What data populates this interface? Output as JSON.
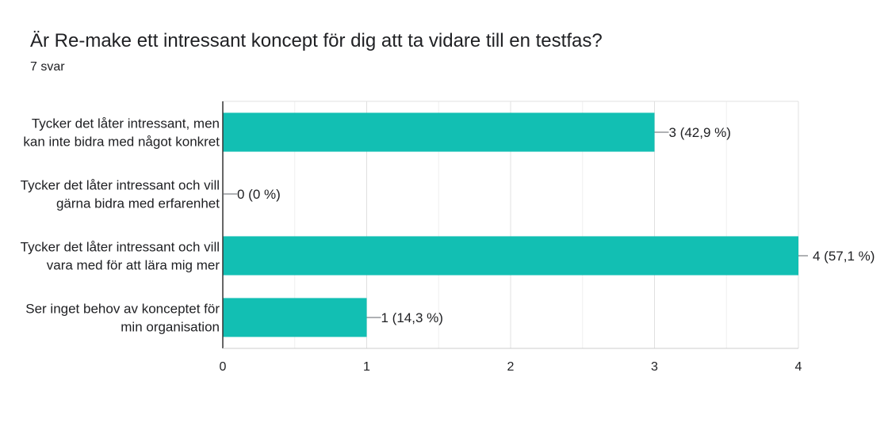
{
  "question": {
    "title": "Är Re-make ett intressant koncept för dig att ta vidare till en testfas?",
    "response_count": "7 svar"
  },
  "chart_data": {
    "type": "bar",
    "orientation": "horizontal",
    "categories": [
      [
        "Tycker det låter intressant, men",
        "kan inte bidra med något konkret"
      ],
      [
        "Tycker det låter intressant och vill",
        "gärna bidra med erfarenhet"
      ],
      [
        "Tycker det låter intressant och vill",
        "vara med för att lära mig mer"
      ],
      [
        "Ser inget behov av konceptet för",
        "min organisation"
      ]
    ],
    "values": [
      3,
      0,
      4,
      1
    ],
    "data_labels": [
      "3 (42,9 %)",
      "0 (0 %)",
      "4 (57,1 %)",
      "1 (14,3 %)"
    ],
    "xlim": [
      0,
      4
    ],
    "x_ticks": [
      0,
      1,
      2,
      3,
      4
    ],
    "grid": true,
    "bar_color": "#12bfb3"
  }
}
